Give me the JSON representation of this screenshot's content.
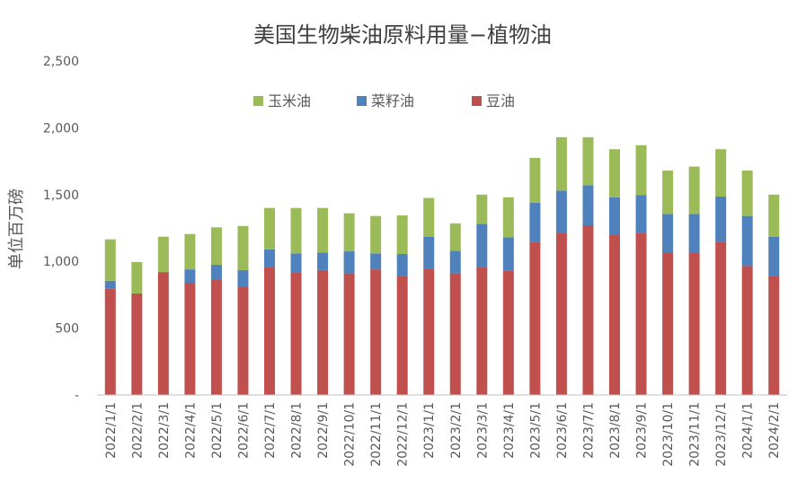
{
  "chart_data": {
    "type": "bar",
    "stacked": true,
    "title": "美国生物柴油原料用量−植物油",
    "ylabel": "单位百万磅",
    "xlabel": "",
    "ylim": [
      0,
      2500
    ],
    "yticks": [
      0,
      500,
      1000,
      1500,
      2000,
      2500
    ],
    "ytick_labels": [
      "-",
      "500",
      "1,000",
      "1,500",
      "2,000",
      "2,500"
    ],
    "grid": false,
    "legend_position": "top-center",
    "categories": [
      "2022/1/1",
      "2022/2/1",
      "2022/3/1",
      "2022/4/1",
      "2022/5/1",
      "2022/6/1",
      "2022/7/1",
      "2022/8/1",
      "2022/9/1",
      "2022/10/1",
      "2022/11/1",
      "2022/12/1",
      "2023/1/1",
      "2023/2/1",
      "2023/3/1",
      "2023/4/1",
      "2023/5/1",
      "2023/6/1",
      "2023/7/1",
      "2023/8/1",
      "2023/9/1",
      "2023/10/1",
      "2023/11/1",
      "2023/12/1",
      "2024/1/1",
      "2024/2/1"
    ],
    "series": [
      {
        "name": "豆油",
        "color": "#C0504D",
        "values": [
          795,
          760,
          920,
          840,
          860,
          810,
          960,
          920,
          935,
          910,
          940,
          890,
          945,
          910,
          960,
          930,
          1145,
          1210,
          1270,
          1200,
          1210,
          1065,
          1065,
          1145,
          965,
          890
        ]
      },
      {
        "name": "菜籽油",
        "color": "#4F81BD",
        "values": [
          60,
          0,
          0,
          100,
          115,
          125,
          130,
          140,
          130,
          165,
          120,
          165,
          240,
          170,
          320,
          250,
          295,
          320,
          300,
          280,
          285,
          290,
          290,
          340,
          375,
          295
        ]
      },
      {
        "name": "玉米油",
        "color": "#9BBB59",
        "values": [
          310,
          235,
          265,
          265,
          280,
          330,
          310,
          340,
          335,
          285,
          280,
          290,
          290,
          205,
          220,
          300,
          335,
          400,
          360,
          360,
          375,
          325,
          355,
          355,
          340,
          315
        ]
      }
    ],
    "legend_order": [
      "玉米油",
      "菜籽油",
      "豆油"
    ]
  }
}
